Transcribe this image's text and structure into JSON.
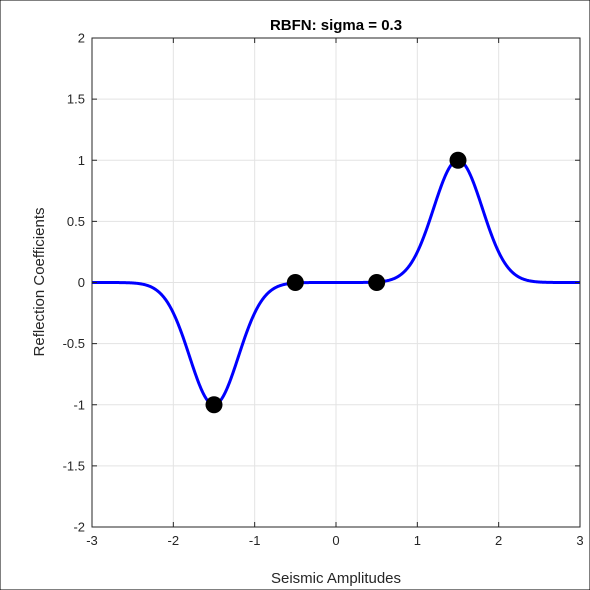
{
  "chart_data": {
    "type": "line",
    "title": "RBFN: sigma = 0.3",
    "xlabel": "Seismic Amplitudes",
    "ylabel": "Reflection Coefficients",
    "xlim": [
      -3,
      3
    ],
    "ylim": [
      -2,
      2
    ],
    "x_ticks": [
      -3,
      -2,
      -1,
      0,
      1,
      2,
      3
    ],
    "y_ticks": [
      -2,
      -1.5,
      -1,
      -0.5,
      0,
      0.5,
      1,
      1.5,
      2
    ],
    "x_tick_labels": [
      "-3",
      "-2",
      "-1",
      "0",
      "1",
      "2",
      "3"
    ],
    "y_tick_labels": [
      "-2",
      "-1.5",
      "-1",
      "-0.5",
      "0",
      "0.5",
      "1",
      "1.5",
      "2"
    ],
    "grid": true,
    "series": [
      {
        "kind": "line",
        "color": "#0000ff",
        "centers": [
          -1.5,
          -0.5,
          0.5,
          1.5
        ],
        "weights": [
          -1,
          0,
          0,
          1
        ],
        "sigma": 0.3
      },
      {
        "kind": "scatter",
        "color": "#000000",
        "x": [
          -1.5,
          -0.5,
          0.5,
          1.5
        ],
        "y": [
          -1,
          0,
          0,
          1
        ]
      }
    ]
  },
  "colors": {
    "curve": "#0000ff",
    "markers": "#000000",
    "grid": "#e3e3e3",
    "axes": "#262626"
  }
}
